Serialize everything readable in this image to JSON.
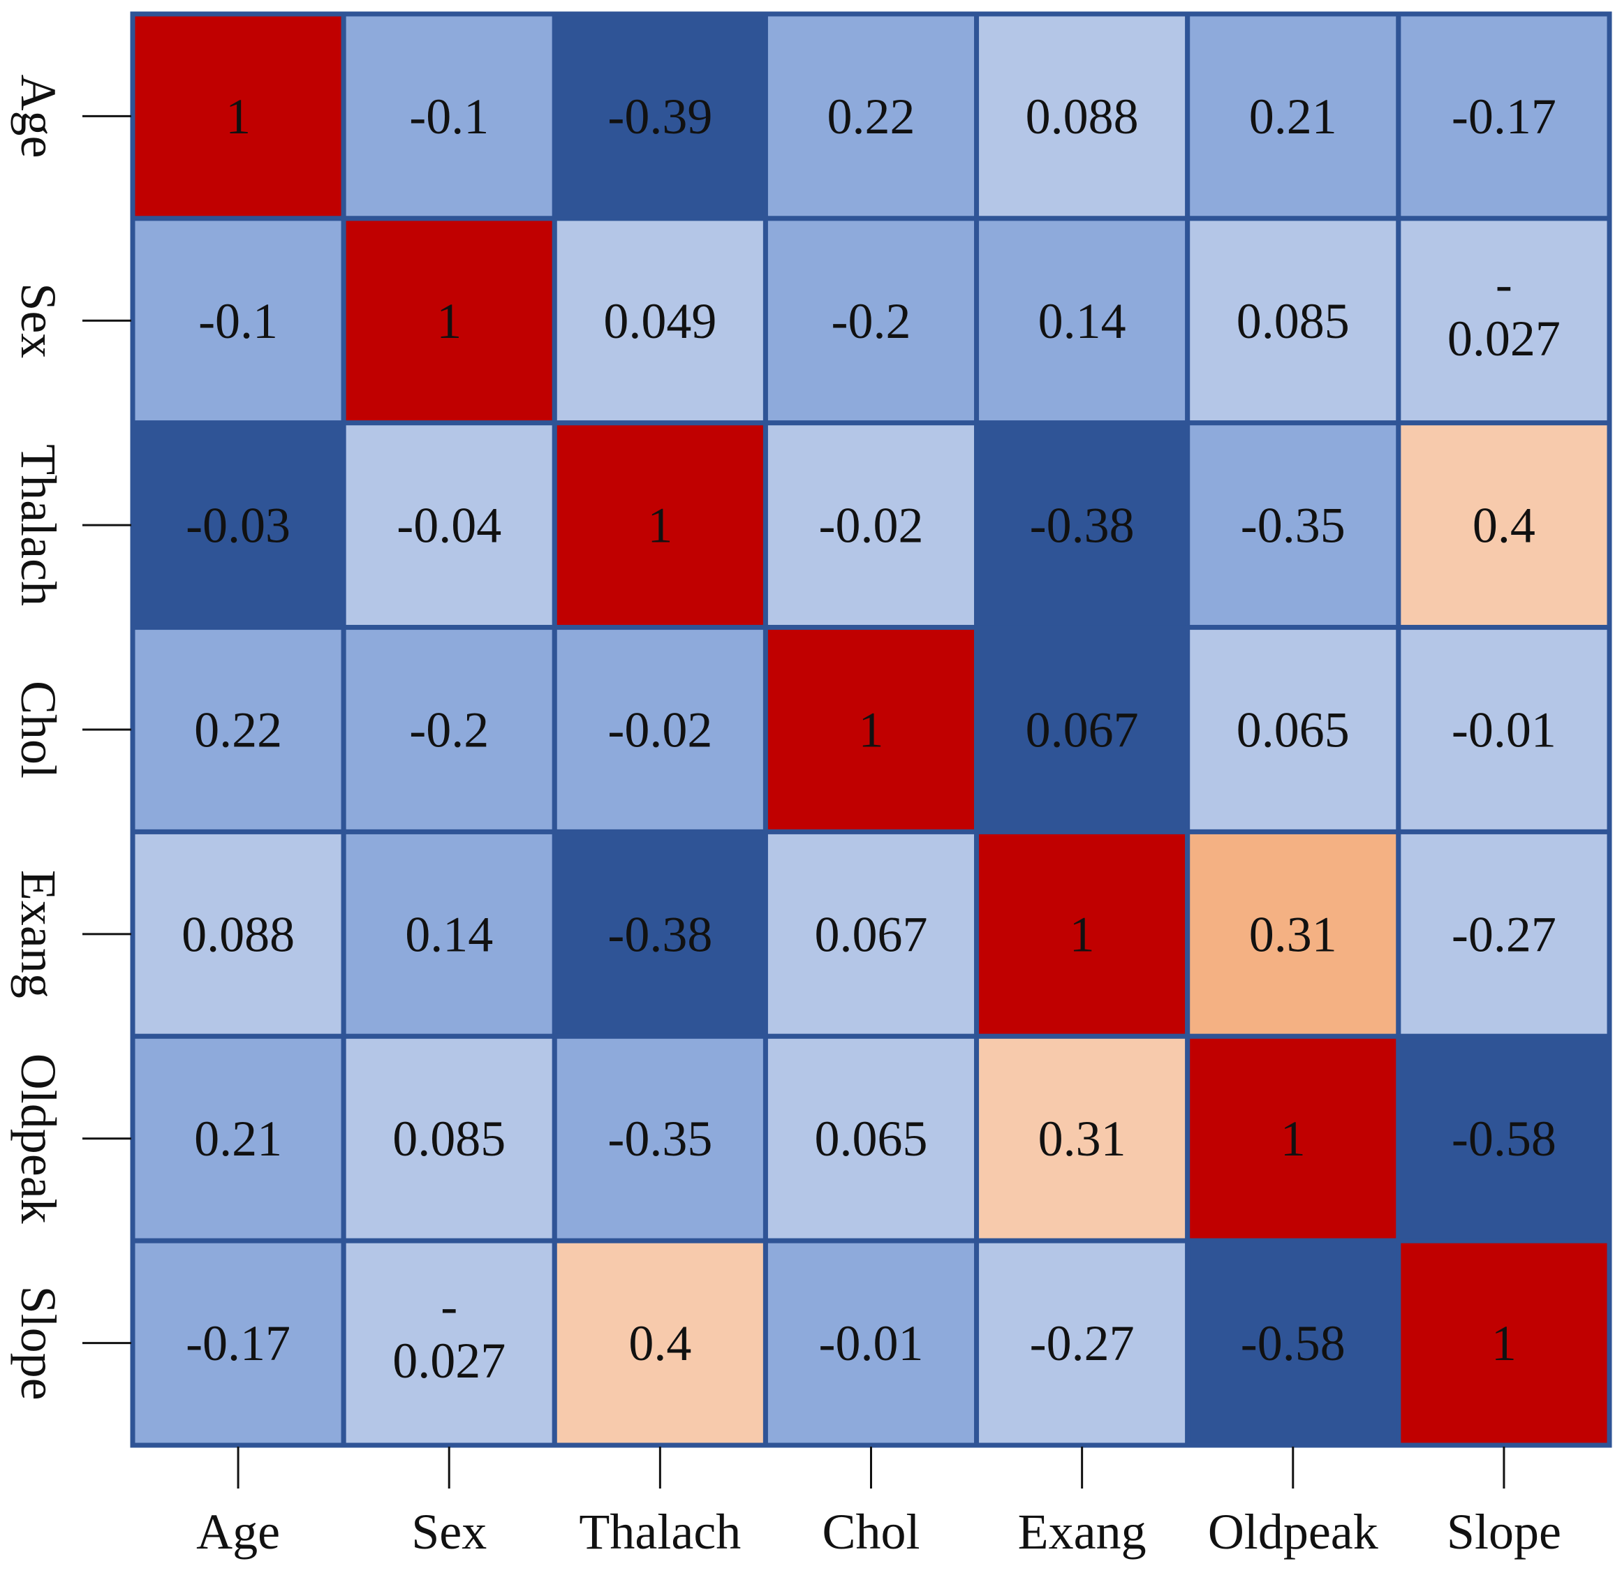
{
  "chart_data": {
    "type": "heatmap",
    "title": "",
    "xlabel": "",
    "ylabel": "",
    "row_labels": [
      "Age",
      "Sex",
      "Thalach",
      "Chol",
      "Exang",
      "Oldpeak",
      "Slope"
    ],
    "col_labels": [
      "Age",
      "Sex",
      "Thalach",
      "Chol",
      "Exang",
      "Oldpeak",
      "Slope"
    ],
    "values": [
      [
        1,
        -0.1,
        -0.39,
        0.22,
        0.088,
        0.21,
        -0.17
      ],
      [
        -0.1,
        1,
        0.049,
        -0.2,
        0.14,
        0.085,
        -0.027
      ],
      [
        -0.03,
        -0.04,
        1,
        -0.02,
        -0.38,
        -0.35,
        0.4
      ],
      [
        0.22,
        -0.2,
        -0.02,
        1,
        0.067,
        0.065,
        -0.01
      ],
      [
        0.088,
        0.14,
        -0.38,
        0.067,
        1,
        0.31,
        -0.27
      ],
      [
        0.21,
        0.085,
        -0.35,
        0.065,
        0.31,
        1,
        -0.58
      ],
      [
        -0.17,
        -0.027,
        0.4,
        -0.01,
        -0.27,
        -0.58,
        1
      ]
    ],
    "cell_labels": [
      [
        "1",
        "-0.1",
        "-0.39",
        "0.22",
        "0.088",
        "0.21",
        "-0.17"
      ],
      [
        "-0.1",
        "1",
        "0.049",
        "-0.2",
        "0.14",
        "0.085",
        "-\n0.027"
      ],
      [
        "-0.03",
        "-0.04",
        "1",
        "-0.02",
        "-0.38",
        "-0.35",
        "0.4"
      ],
      [
        "0.22",
        "-0.2",
        "-0.02",
        "1",
        "0.067",
        "0.065",
        "-0.01"
      ],
      [
        "0.088",
        "0.14",
        "-0.38",
        "0.067",
        "1",
        "0.31",
        "-0.27"
      ],
      [
        "0.21",
        "0.085",
        "-0.35",
        "0.065",
        "0.31",
        "1",
        "-0.58"
      ],
      [
        "-0.17",
        "-\n0.027",
        "0.4",
        "-0.01",
        "-0.27",
        "-0.58",
        "1"
      ]
    ],
    "cell_colors": [
      [
        "#c00000",
        "#8eaadb",
        "#2f5496",
        "#8eaadb",
        "#b4c6e7",
        "#8eaadb",
        "#8eaadb"
      ],
      [
        "#8eaadb",
        "#c00000",
        "#b4c6e7",
        "#8eaadb",
        "#8eaadb",
        "#b4c6e7",
        "#b4c6e7"
      ],
      [
        "#2f5496",
        "#b4c6e7",
        "#c00000",
        "#b4c6e7",
        "#2f5496",
        "#8eaadb",
        "#f7caac"
      ],
      [
        "#8eaadb",
        "#8eaadb",
        "#8eaadb",
        "#c00000",
        "#2f5496",
        "#b4c6e7",
        "#b4c6e7"
      ],
      [
        "#b4c6e7",
        "#8eaadb",
        "#2f5496",
        "#b4c6e7",
        "#c00000",
        "#f4b183",
        "#b4c6e7"
      ],
      [
        "#8eaadb",
        "#b4c6e7",
        "#8eaadb",
        "#b4c6e7",
        "#f7caac",
        "#c00000",
        "#2f5496"
      ],
      [
        "#8eaadb",
        "#b4c6e7",
        "#f7caac",
        "#8eaadb",
        "#b4c6e7",
        "#2f5496",
        "#c00000"
      ]
    ],
    "grid_color": "#2f5496",
    "legend": "none"
  }
}
